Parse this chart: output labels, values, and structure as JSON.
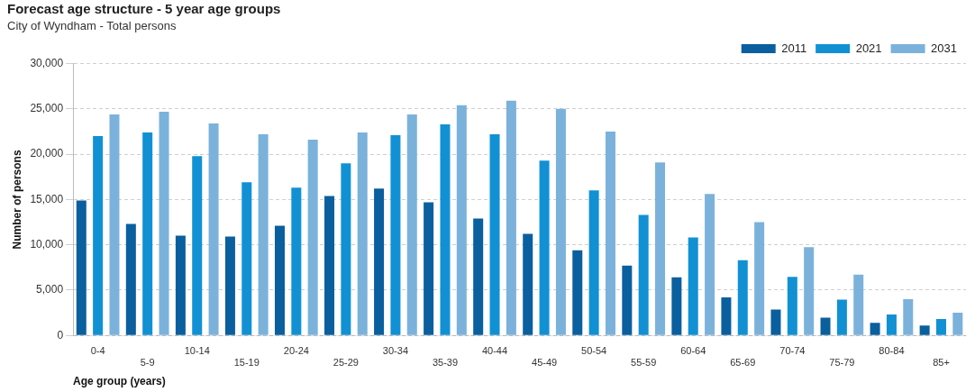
{
  "chart_data": {
    "type": "bar",
    "title": "Forecast age structure - 5 year age groups",
    "subtitle": "City of Wyndham - Total persons",
    "xlabel": "Age group (years)",
    "ylabel": "Number of persons",
    "categories": [
      "0-4",
      "5-9",
      "10-14",
      "15-19",
      "20-24",
      "25-29",
      "30-34",
      "35-39",
      "40-44",
      "45-49",
      "50-54",
      "55-59",
      "60-64",
      "65-69",
      "70-74",
      "75-79",
      "80-84",
      "85+"
    ],
    "series": [
      {
        "name": "2011",
        "color": "#0a5f9e",
        "values": [
          14900,
          12300,
          11000,
          10900,
          12100,
          15400,
          16200,
          14700,
          12900,
          11200,
          9400,
          7700,
          6400,
          4200,
          2850,
          1950,
          1400,
          1100
        ]
      },
      {
        "name": "2021",
        "color": "#1191d4",
        "values": [
          22000,
          22400,
          19800,
          16900,
          16300,
          19000,
          22100,
          23300,
          22200,
          19300,
          16000,
          13300,
          10800,
          8300,
          6450,
          3950,
          2300,
          1800
        ]
      },
      {
        "name": "2031",
        "color": "#7bb2db",
        "values": [
          24400,
          24700,
          23400,
          22200,
          21600,
          22400,
          24400,
          25400,
          25900,
          25000,
          22500,
          19100,
          15600,
          12500,
          9750,
          6700,
          4000,
          2500
        ]
      }
    ],
    "ylim": [
      0,
      30000
    ],
    "yticks": [
      {
        "value": 0,
        "label": "0"
      },
      {
        "value": 5000,
        "label": "5,000"
      },
      {
        "value": 10000,
        "label": "10,000"
      },
      {
        "value": 15000,
        "label": "15,000"
      },
      {
        "value": 20000,
        "label": "20,000"
      },
      {
        "value": 25000,
        "label": "25,000"
      },
      {
        "value": 30000,
        "label": "30,000"
      }
    ],
    "grid": "y",
    "legend": "top right"
  }
}
